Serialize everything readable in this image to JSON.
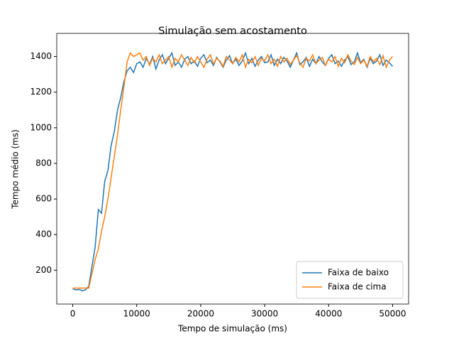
{
  "chart_data": {
    "type": "line",
    "title": "Simulação sem acostamento",
    "x_label": "Tempo de simulação (ms)",
    "y_label": "Tempo médio (ms)",
    "x": [
      0,
      500,
      1000,
      1500,
      2000,
      2500,
      3000,
      3500,
      4000,
      4500,
      5000,
      5500,
      6000,
      6500,
      7000,
      7500,
      8000,
      8500,
      9000,
      9500,
      10000,
      10500,
      11000,
      11500,
      12000,
      12500,
      13000,
      13500,
      14000,
      14500,
      15000,
      15500,
      16000,
      16500,
      17000,
      17500,
      18000,
      18500,
      19000,
      19500,
      20000,
      20500,
      21000,
      21500,
      22000,
      22500,
      23000,
      23500,
      24000,
      24500,
      25000,
      25500,
      26000,
      26500,
      27000,
      27500,
      28000,
      28500,
      29000,
      29500,
      30000,
      30500,
      31000,
      31500,
      32000,
      32500,
      33000,
      33500,
      34000,
      34500,
      35000,
      35500,
      36000,
      36500,
      37000,
      37500,
      38000,
      38500,
      39000,
      39500,
      40000,
      40500,
      41000,
      41500,
      42000,
      42500,
      43000,
      43500,
      44000,
      44500,
      45000,
      45500,
      46000,
      46500,
      47000,
      47500,
      48000,
      48500,
      49000,
      49500,
      50000
    ],
    "series": [
      {
        "name": "Faixa de baixo",
        "color": "#1f77b4",
        "values": [
          95,
          90,
          92,
          85,
          90,
          110,
          220,
          330,
          540,
          520,
          700,
          760,
          900,
          980,
          1100,
          1170,
          1260,
          1320,
          1340,
          1310,
          1360,
          1370,
          1340,
          1390,
          1355,
          1400,
          1330,
          1380,
          1410,
          1360,
          1390,
          1420,
          1350,
          1370,
          1340,
          1385,
          1400,
          1360,
          1375,
          1345,
          1390,
          1410,
          1365,
          1380,
          1350,
          1395,
          1370,
          1340,
          1380,
          1405,
          1360,
          1385,
          1350,
          1375,
          1420,
          1360,
          1390,
          1345,
          1380,
          1400,
          1365,
          1370,
          1410,
          1350,
          1385,
          1360,
          1395,
          1375,
          1340,
          1380,
          1420,
          1355,
          1370,
          1395,
          1345,
          1385,
          1360,
          1400,
          1370,
          1350,
          1390,
          1410,
          1360,
          1375,
          1345,
          1380,
          1400,
          1355,
          1370,
          1420,
          1365,
          1385,
          1340,
          1390,
          1360,
          1375,
          1410,
          1350,
          1380,
          1365,
          1345
        ]
      },
      {
        "name": "Faixa de cima",
        "color": "#ff7f0e",
        "values": [
          100,
          100,
          100,
          100,
          100,
          100,
          180,
          260,
          320,
          420,
          500,
          600,
          720,
          840,
          960,
          1100,
          1230,
          1370,
          1420,
          1400,
          1410,
          1420,
          1380,
          1400,
          1350,
          1390,
          1370,
          1410,
          1360,
          1380,
          1400,
          1340,
          1390,
          1370,
          1410,
          1380,
          1350,
          1395,
          1365,
          1400,
          1370,
          1340,
          1385,
          1410,
          1360,
          1390,
          1375,
          1345,
          1400,
          1380,
          1360,
          1395,
          1370,
          1410,
          1340,
          1385,
          1365,
          1400,
          1350,
          1390,
          1375,
          1410,
          1360,
          1385,
          1345,
          1400,
          1370,
          1390,
          1355,
          1380,
          1405,
          1365,
          1340,
          1390,
          1375,
          1410,
          1360,
          1380,
          1395,
          1350,
          1385,
          1370,
          1400,
          1345,
          1390,
          1365,
          1410,
          1375,
          1355,
          1395,
          1360,
          1380,
          1345,
          1400,
          1370,
          1390,
          1355,
          1405,
          1340,
          1380,
          1400
        ]
      }
    ],
    "xlim": [
      -2500,
      52500
    ],
    "ylim": [
      10,
      1530
    ],
    "xticks": [
      0,
      10000,
      20000,
      30000,
      40000,
      50000
    ],
    "yticks": [
      200,
      400,
      600,
      800,
      1000,
      1200,
      1400
    ],
    "grid": false,
    "legend": "lower right"
  }
}
